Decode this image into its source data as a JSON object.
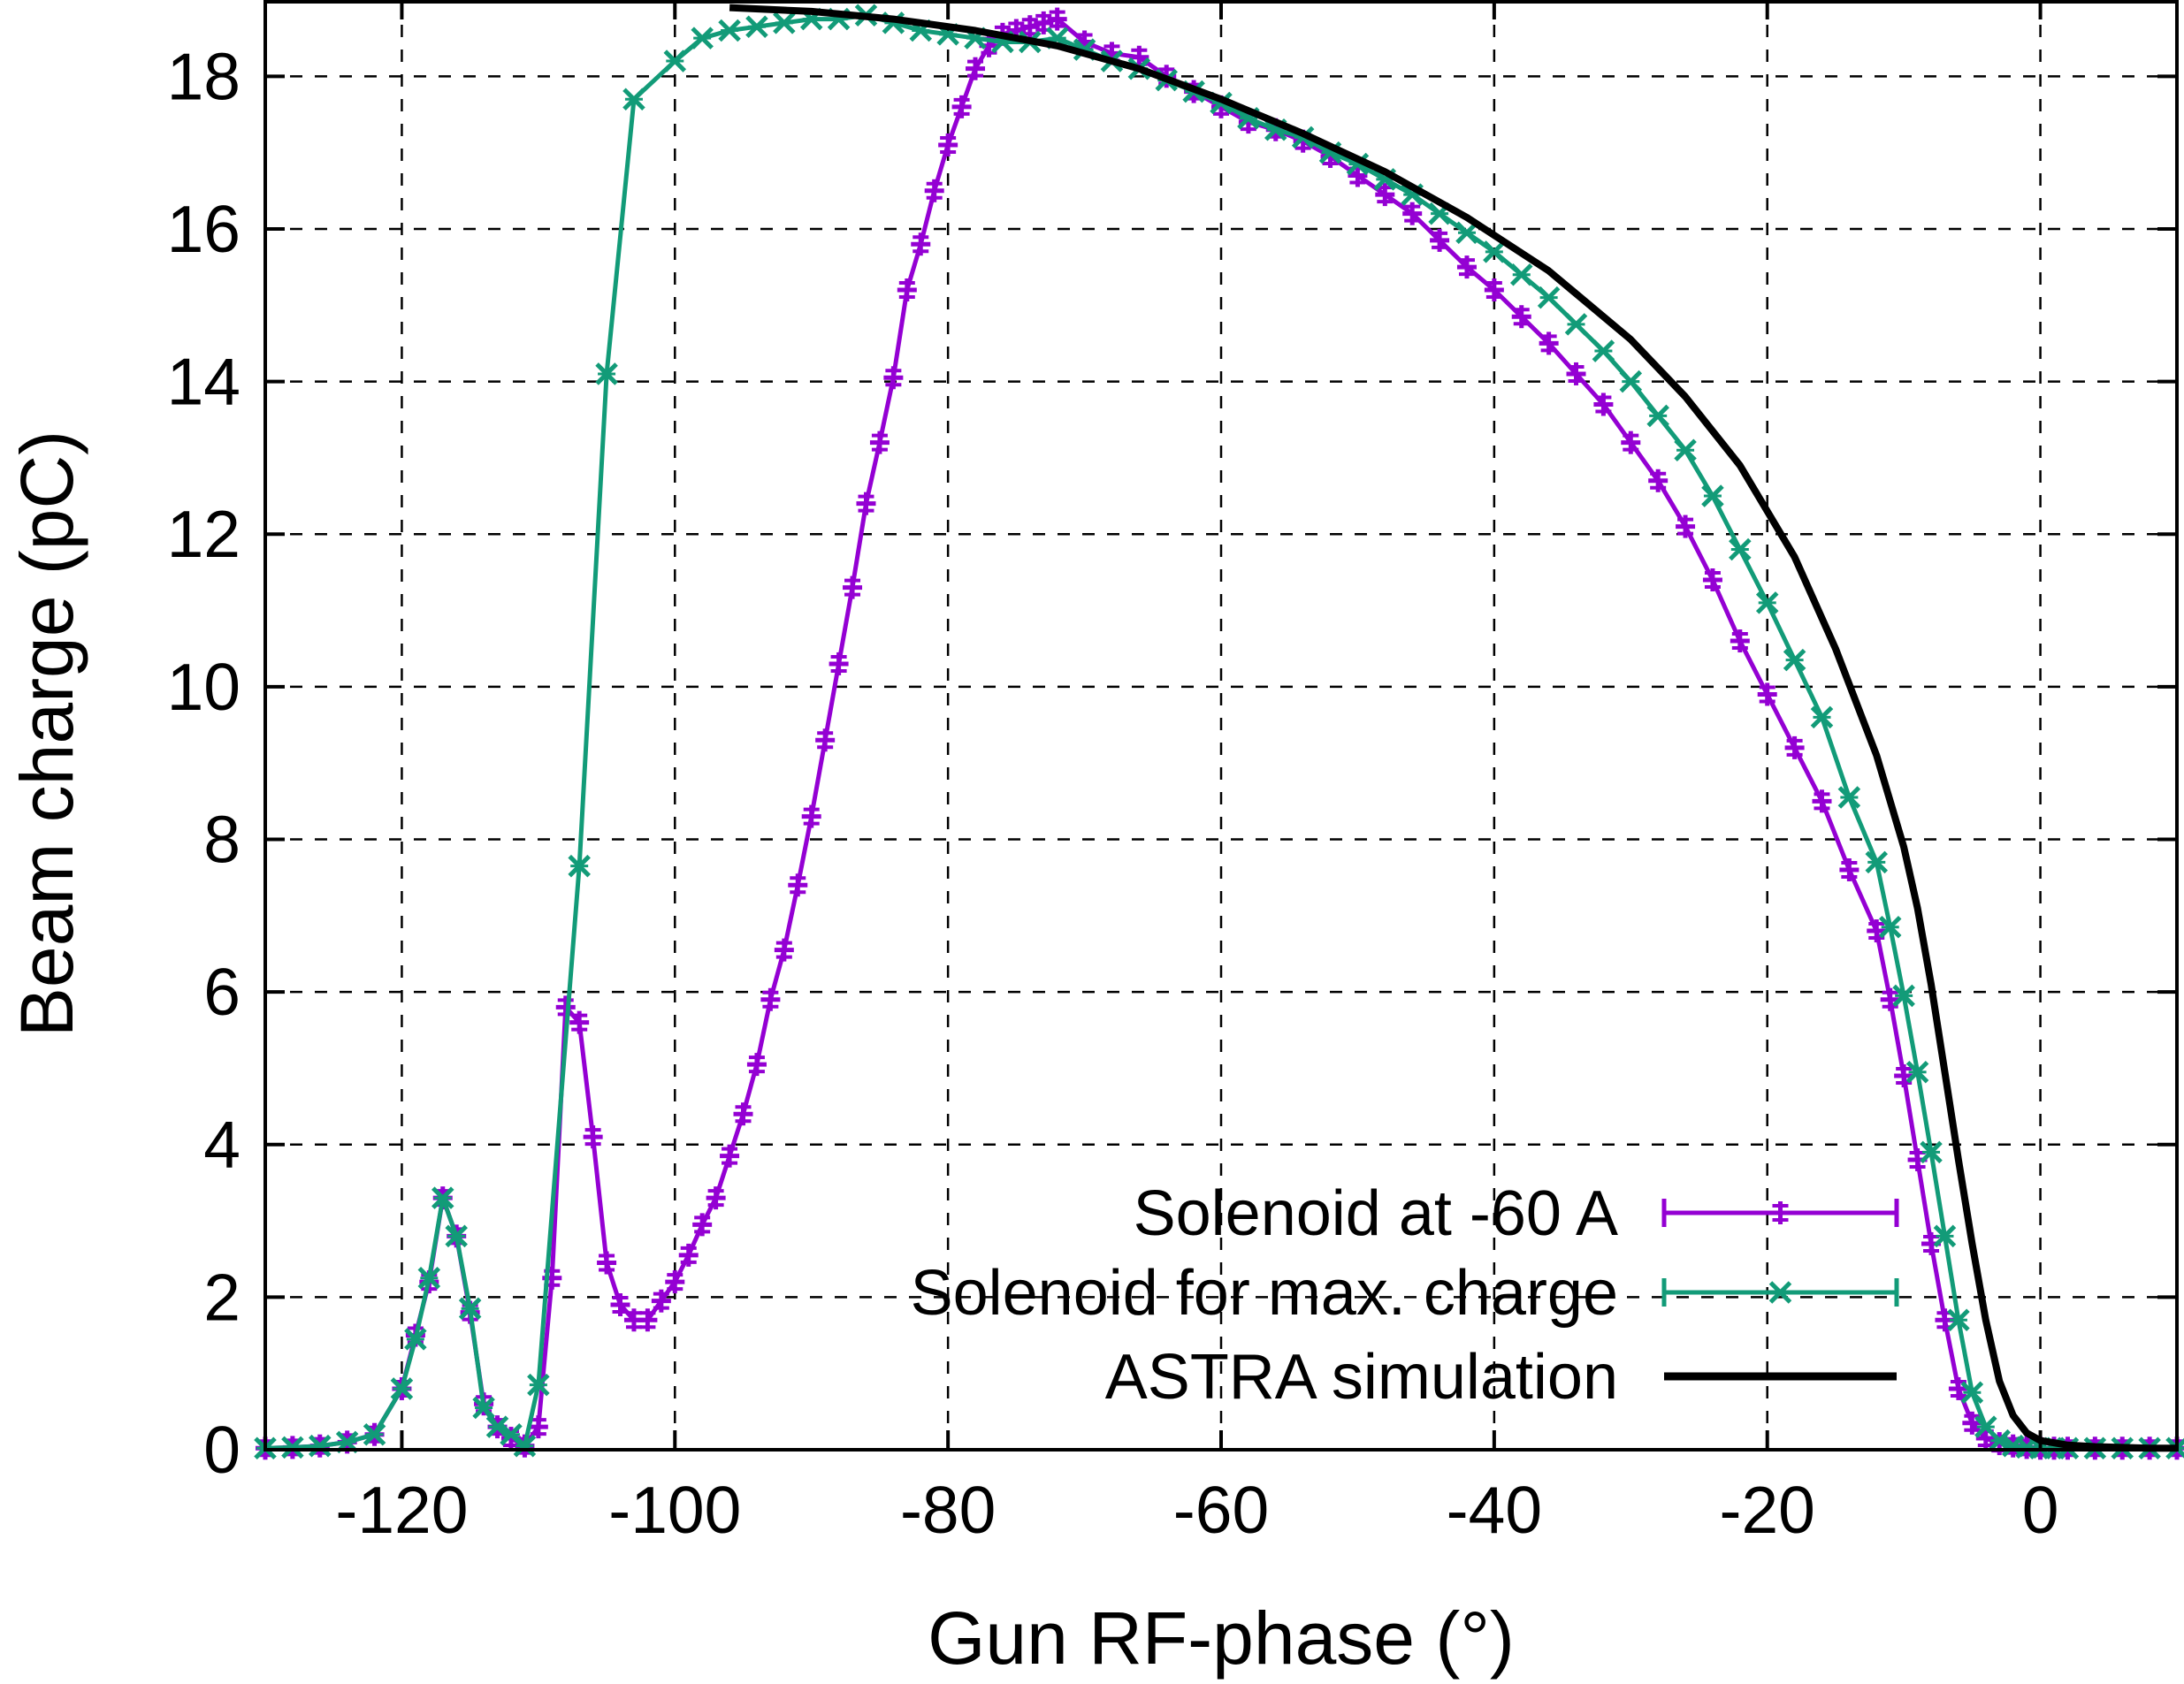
{
  "chart_data": {
    "type": "line",
    "xlabel": "Gun RF-phase (°)",
    "ylabel": "Beam charge (pC)",
    "xlim": [
      -130,
      10
    ],
    "ylim": [
      0,
      19
    ],
    "xticks": [
      -120,
      -100,
      -80,
      -60,
      -40,
      -20,
      0
    ],
    "yticks": [
      0,
      2,
      4,
      6,
      8,
      10,
      12,
      14,
      16,
      18
    ],
    "xtick_labels": [
      "-120",
      "-100",
      "-80",
      "-60",
      "-40",
      "-20",
      "0"
    ],
    "ytick_labels": [
      "0",
      "2",
      "4",
      "6",
      "8",
      "10",
      "12",
      "14",
      "16",
      "18"
    ],
    "grid": true,
    "legend_position": "bottom-right",
    "series": [
      {
        "name": "Solenoid at -60 A",
        "color": "#9400d3",
        "marker": "plus-errorbar",
        "x": [
          -130,
          -128,
          -126,
          -124,
          -122,
          -120,
          -119,
          -118,
          -117,
          -116,
          -115,
          -114,
          -113,
          -112,
          -111,
          -110,
          -109,
          -108,
          -107,
          -106,
          -105,
          -104,
          -103,
          -102,
          -101,
          -100,
          -99,
          -98,
          -97,
          -96,
          -95,
          -94,
          -93,
          -92,
          -91,
          -90,
          -89,
          -88,
          -87,
          -86,
          -85,
          -84,
          -83,
          -82,
          -81,
          -80,
          -79,
          -78,
          -77,
          -76,
          -75,
          -74,
          -73,
          -72,
          -70,
          -68,
          -66,
          -64,
          -62,
          -60,
          -58,
          -56,
          -54,
          -52,
          -50,
          -48,
          -46,
          -44,
          -42,
          -40,
          -38,
          -36,
          -34,
          -32,
          -30,
          -28,
          -26,
          -24,
          -22,
          -20,
          -18,
          -16,
          -14,
          -12,
          -11,
          -10,
          -9,
          -8,
          -7,
          -6,
          -5,
          -4,
          -3,
          -2,
          -1,
          0,
          1,
          2,
          4,
          6,
          8,
          10
        ],
        "y": [
          0.02,
          0.03,
          0.05,
          0.1,
          0.2,
          0.8,
          1.5,
          2.2,
          3.3,
          2.8,
          1.8,
          0.6,
          0.3,
          0.15,
          0.05,
          0.3,
          2.25,
          5.8,
          5.6,
          4.1,
          2.45,
          1.9,
          1.7,
          1.7,
          1.95,
          2.2,
          2.55,
          2.95,
          3.3,
          3.85,
          4.4,
          5.05,
          5.9,
          6.55,
          7.4,
          8.3,
          9.3,
          10.3,
          11.3,
          12.4,
          13.2,
          14.05,
          15.2,
          15.8,
          16.5,
          17.1,
          17.6,
          18.1,
          18.4,
          18.55,
          18.6,
          18.65,
          18.7,
          18.75,
          18.45,
          18.3,
          18.25,
          18.0,
          17.8,
          17.6,
          17.4,
          17.3,
          17.15,
          16.95,
          16.7,
          16.45,
          16.2,
          15.85,
          15.5,
          15.2,
          14.85,
          14.5,
          14.1,
          13.7,
          13.2,
          12.7,
          12.1,
          11.4,
          10.6,
          9.9,
          9.2,
          8.5,
          7.6,
          6.8,
          5.9,
          4.9,
          3.8,
          2.7,
          1.7,
          0.8,
          0.35,
          0.15,
          0.08,
          0.05,
          0.03,
          0.02,
          0.02,
          0.02,
          0.02,
          0.02,
          0.02,
          0.02
        ]
      },
      {
        "name": "Solenoid for max. charge",
        "color": "#129b78",
        "marker": "x-errorbar",
        "x": [
          -130,
          -128,
          -126,
          -124,
          -122,
          -120,
          -119,
          -118,
          -117,
          -116,
          -115,
          -114,
          -113,
          -112,
          -111,
          -110,
          -107,
          -105,
          -103,
          -100,
          -98,
          -96,
          -94,
          -92,
          -90,
          -88,
          -86,
          -84,
          -82,
          -80,
          -78,
          -76,
          -74,
          -72,
          -70,
          -68,
          -66,
          -64,
          -62,
          -60,
          -58,
          -56,
          -54,
          -52,
          -50,
          -48,
          -46,
          -44,
          -42,
          -40,
          -38,
          -36,
          -34,
          -32,
          -30,
          -28,
          -26,
          -24,
          -22,
          -20,
          -18,
          -16,
          -14,
          -12,
          -11,
          -10,
          -9,
          -8,
          -7,
          -6,
          -5,
          -4,
          -3,
          -2,
          -1,
          0,
          1,
          2,
          4,
          6,
          8,
          10
        ],
        "y": [
          0.02,
          0.03,
          0.05,
          0.1,
          0.2,
          0.8,
          1.45,
          2.25,
          3.3,
          2.8,
          1.85,
          0.55,
          0.3,
          0.2,
          0.05,
          0.85,
          7.65,
          14.1,
          17.7,
          18.2,
          18.5,
          18.6,
          18.65,
          18.7,
          18.75,
          18.75,
          18.8,
          18.7,
          18.6,
          18.55,
          18.5,
          18.45,
          18.45,
          18.5,
          18.35,
          18.2,
          18.1,
          17.95,
          17.8,
          17.65,
          17.45,
          17.3,
          17.2,
          17.0,
          16.85,
          16.65,
          16.45,
          16.2,
          15.95,
          15.7,
          15.4,
          15.1,
          14.75,
          14.4,
          14.0,
          13.55,
          13.1,
          12.5,
          11.8,
          11.1,
          10.35,
          9.6,
          8.55,
          7.7,
          6.85,
          5.95,
          4.95,
          3.9,
          2.8,
          1.7,
          0.75,
          0.3,
          0.12,
          0.05,
          0.03,
          0.02,
          0.02,
          0.02,
          0.02,
          0.02,
          0.02,
          0.02
        ]
      },
      {
        "name": "ASTRA simulation",
        "color": "#000000",
        "marker": "none",
        "x": [
          -96,
          -90,
          -84,
          -78,
          -72,
          -66,
          -60,
          -54,
          -48,
          -42,
          -36,
          -30,
          -26,
          -22,
          -18,
          -15,
          -12,
          -10,
          -9,
          -8,
          -7,
          -6,
          -5,
          -4,
          -3,
          -2,
          -1,
          0,
          2,
          4,
          6,
          8,
          10
        ],
        "y": [
          18.9,
          18.85,
          18.75,
          18.6,
          18.4,
          18.1,
          17.7,
          17.25,
          16.75,
          16.15,
          15.45,
          14.55,
          13.8,
          12.9,
          11.7,
          10.5,
          9.1,
          7.9,
          7.1,
          6.1,
          4.95,
          3.8,
          2.7,
          1.7,
          0.9,
          0.45,
          0.22,
          0.12,
          0.06,
          0.04,
          0.03,
          0.02,
          0.02
        ]
      }
    ]
  }
}
